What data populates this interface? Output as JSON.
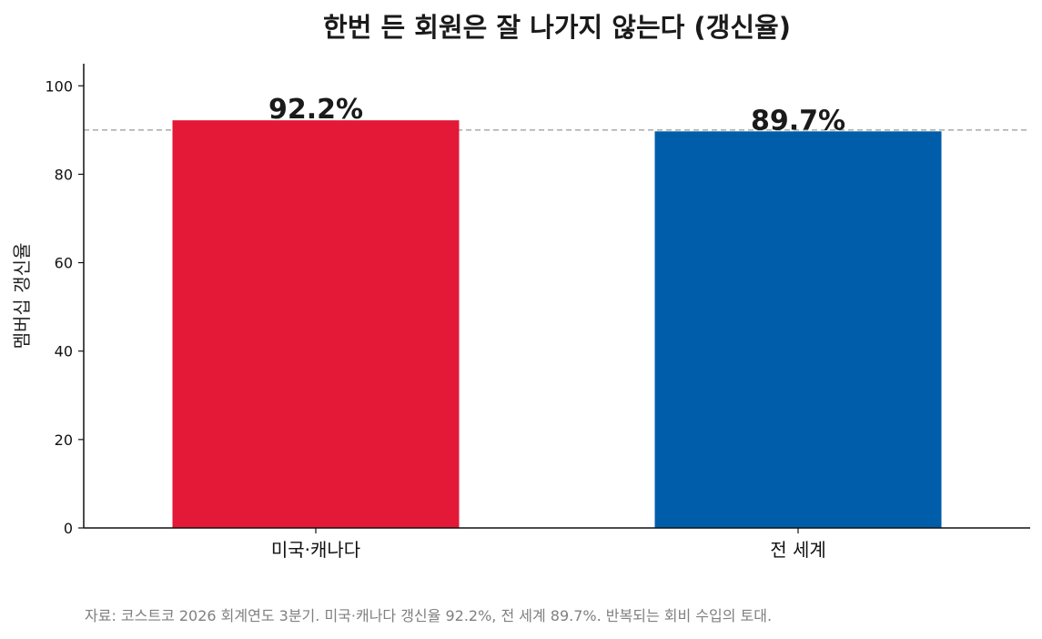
{
  "chart_data": {
    "type": "bar",
    "title": "한번 든 회원은 잘 나가지 않는다 (갱신율)",
    "ylabel": "멤버십 갱신율",
    "xlabel": "",
    "categories": [
      "미국·캐나다",
      "전 세계"
    ],
    "values": [
      92.2,
      89.7
    ],
    "data_labels": [
      "92.2%",
      "89.7%"
    ],
    "bar_colors": [
      "#e31937",
      "#005daa"
    ],
    "ylim": [
      0,
      105
    ],
    "yticks": [
      0,
      20,
      40,
      60,
      80,
      100
    ],
    "reference_line": {
      "value": 90,
      "style": "dashed",
      "color": "#b0b0b0"
    },
    "grid": false,
    "legend": "none",
    "source_note": "자료: 코스트코 2026 회계연도 3분기. 미국·캐나다 갱신율 92.2%, 전 세계 89.7%. 반복되는 회비 수입의 토대."
  }
}
